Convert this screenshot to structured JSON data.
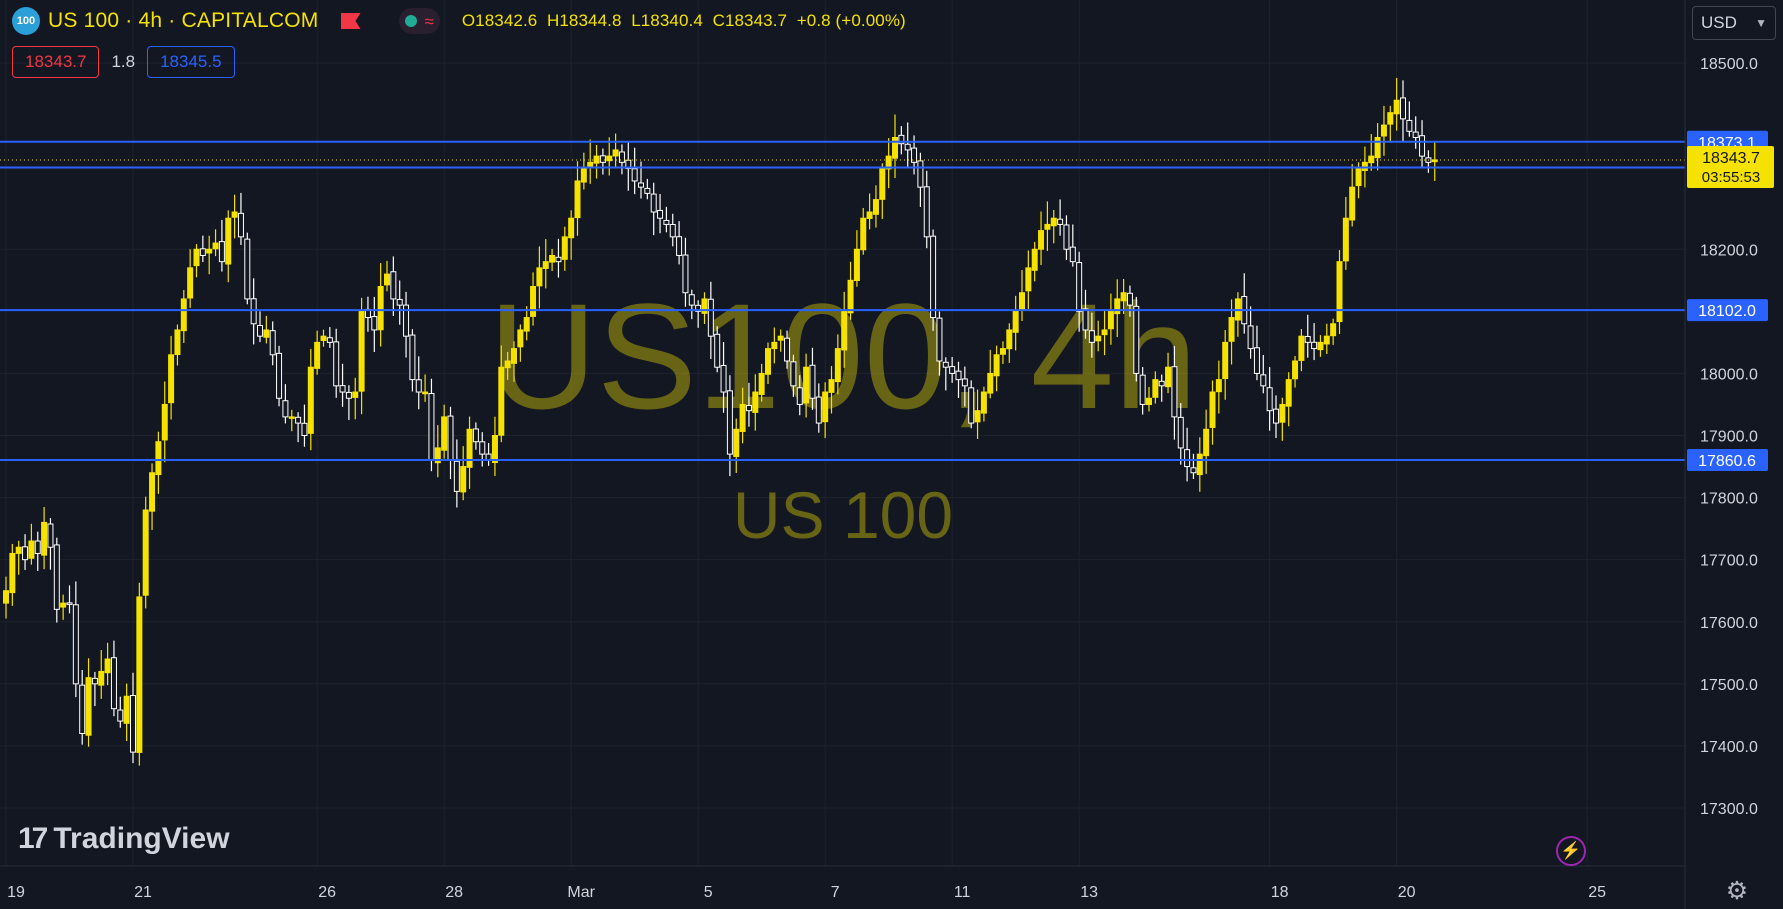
{
  "header": {
    "symbol_badge": "100",
    "title": "US 100 · 4h · CAPITALCOM",
    "ohlc": {
      "o_label": "O",
      "o": "18342.6",
      "h_label": "H",
      "h": "18344.8",
      "l_label": "L",
      "l": "18340.4",
      "c_label": "C",
      "c": "18343.7",
      "change": "+0.8 (+0.00%)"
    },
    "bid": "18343.7",
    "spread": "1.8",
    "ask": "18345.5",
    "currency": "USD"
  },
  "watermark": {
    "main": "US100, 4h",
    "sub": "US 100"
  },
  "brand": {
    "mark": "17",
    "name": "TradingView"
  },
  "colors": {
    "bg": "#131722",
    "up": "#f5e200",
    "down": "#ffffff",
    "hline": "#2962ff",
    "grid": "#1e222d",
    "axis_text": "#d1d4dc"
  },
  "icons": {
    "flag": "flag-icon",
    "wave": "wave-icon",
    "bolt": "lightning-icon",
    "settings": "gear-icon"
  },
  "chart_data": {
    "type": "candlestick",
    "ylim": [
      17210,
      18570
    ],
    "y_ticks": [
      17300,
      17400,
      17500,
      17600,
      17700,
      17800,
      17900,
      18000,
      18200,
      18500
    ],
    "x_ticks": [
      {
        "label": "19",
        "i": 0
      },
      {
        "label": "21",
        "i": 20
      },
      {
        "label": "26",
        "i": 49
      },
      {
        "label": "28",
        "i": 69
      },
      {
        "label": "Mar",
        "i": 89
      },
      {
        "label": "5",
        "i": 109
      },
      {
        "label": "7",
        "i": 129
      },
      {
        "label": "11",
        "i": 149
      },
      {
        "label": "13",
        "i": 169
      },
      {
        "label": "18",
        "i": 199
      },
      {
        "label": "20",
        "i": 219
      },
      {
        "label": "25",
        "i": 249
      }
    ],
    "hlines": [
      {
        "value": 18373.1,
        "label": "18373.1"
      },
      {
        "value": 18331.6,
        "label": "18331.6"
      },
      {
        "value": 18102.0,
        "label": "18102.0"
      },
      {
        "value": 17860.6,
        "label": "17860.6"
      }
    ],
    "last_price": {
      "value": 18343.7,
      "label": "18343.7",
      "countdown": "03:55:53"
    },
    "closes": [
      17650,
      17710,
      17720,
      17700,
      17730,
      17710,
      17760,
      17720,
      17620,
      17630,
      17630,
      17500,
      17420,
      17510,
      17500,
      17520,
      17540,
      17460,
      17440,
      17480,
      17390,
      17640,
      17780,
      17840,
      17890,
      17950,
      18030,
      18070,
      18120,
      18170,
      18200,
      18190,
      18200,
      18210,
      18180,
      18250,
      18260,
      18220,
      18120,
      18080,
      18060,
      18070,
      18030,
      17960,
      17930,
      17930,
      17920,
      17900,
      18010,
      18050,
      18060,
      18050,
      17980,
      17970,
      17960,
      17970,
      18100,
      18090,
      18070,
      18140,
      18160,
      18120,
      18110,
      18060,
      17990,
      17970,
      17970,
      17860,
      17880,
      17930,
      17860,
      17810,
      17850,
      17910,
      17890,
      17870,
      17860,
      17900,
      18010,
      18020,
      18040,
      18070,
      18090,
      18140,
      18170,
      18180,
      18190,
      18180,
      18220,
      18250,
      18310,
      18330,
      18340,
      18350,
      18340,
      18350,
      18360,
      18340,
      18330,
      18310,
      18300,
      18290,
      18260,
      18250,
      18240,
      18220,
      18190,
      18130,
      18110,
      18100,
      18120,
      18060,
      18010,
      17970,
      17870,
      17910,
      17950,
      17940,
      17970,
      18000,
      18040,
      18050,
      18060,
      18020,
      17980,
      17950,
      18010,
      17960,
      17920,
      17970,
      17990,
      18040,
      18100,
      18150,
      18200,
      18250,
      18260,
      18280,
      18330,
      18350,
      18380,
      18370,
      18360,
      18340,
      18300,
      18220,
      18090,
      18020,
      18010,
      18000,
      17990,
      17980,
      17920,
      17940,
      17970,
      18000,
      18030,
      18040,
      18070,
      18100,
      18130,
      18170,
      18200,
      18230,
      18240,
      18250,
      18240,
      18200,
      18180,
      18100,
      18070,
      18050,
      18060,
      18070,
      18100,
      18120,
      18130,
      18110,
      18000,
      17950,
      17960,
      17990,
      17980,
      18010,
      17930,
      17880,
      17850,
      17840,
      17870,
      17910,
      17970,
      17990,
      18050,
      18090,
      18120,
      18080,
      18040,
      18000,
      17980,
      17940,
      17920,
      17950,
      17990,
      18020,
      18060,
      18050,
      18040,
      18050,
      18060,
      18080,
      18180,
      18250,
      18300,
      18330,
      18340,
      18350,
      18380,
      18400,
      18420,
      18440,
      18410,
      18390,
      18380,
      18350,
      18340,
      18344
    ]
  }
}
